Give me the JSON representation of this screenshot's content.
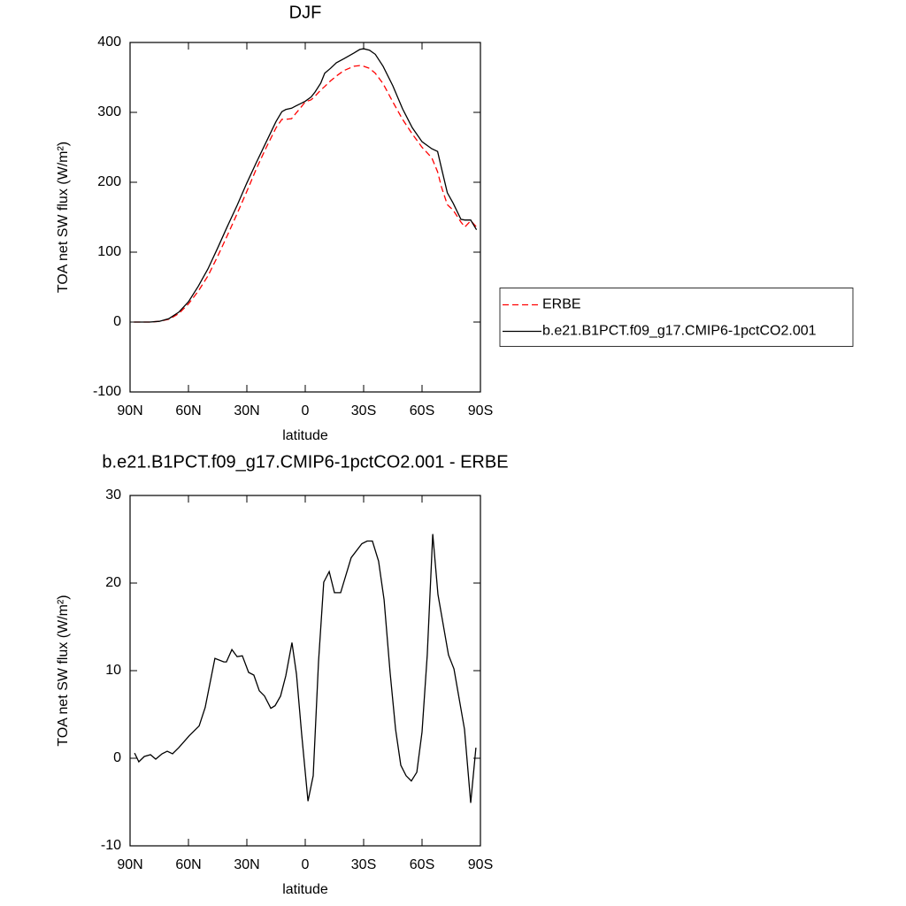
{
  "chart_data": [
    {
      "type": "line",
      "title": "DJF",
      "xlabel": "latitude",
      "ylabel": "TOA net SW flux (W/m²)",
      "x": [
        88,
        85,
        80,
        75,
        70,
        65,
        60,
        55,
        50,
        45,
        40,
        35,
        30,
        25,
        20,
        15,
        12,
        10,
        7,
        5,
        2,
        0,
        -3,
        -5,
        -8,
        -10,
        -13,
        -16,
        -20,
        -25,
        -28,
        -30,
        -33,
        -36,
        -40,
        -45,
        -50,
        -55,
        -60,
        -65,
        -68,
        -70,
        -73,
        -76,
        -80,
        -82,
        -85,
        -88
      ],
      "series": [
        {
          "name": "ERBE",
          "color": "#ff0000",
          "dashed": true,
          "values": [
            0,
            0,
            0,
            1,
            4,
            12,
            26,
            44,
            66,
            94,
            124,
            155,
            187,
            220,
            250,
            278,
            290,
            290,
            291,
            298,
            308,
            315,
            318,
            323,
            332,
            337,
            345,
            352,
            360,
            366,
            367,
            366,
            363,
            356,
            341,
            315,
            290,
            269,
            250,
            235,
            215,
            193,
            168,
            160,
            143,
            136,
            145,
            136
          ]
        },
        {
          "name": "b.e21.B1PCT.f09_g17.CMIP6-1pctCO2.001",
          "color": "#000000",
          "dashed": false,
          "values": [
            0,
            0,
            0,
            1,
            5,
            14,
            29,
            51,
            76,
            106,
            137,
            167,
            199,
            229,
            258,
            287,
            301,
            304,
            306,
            309,
            313,
            316,
            322,
            329,
            342,
            356,
            363,
            371,
            377,
            385,
            390,
            391,
            389,
            383,
            366,
            338,
            305,
            278,
            258,
            248,
            244,
            220,
            185,
            170,
            147,
            146,
            146,
            132
          ]
        }
      ],
      "xlim": [
        90,
        -90
      ],
      "xticks": [
        {
          "value": 90,
          "label": "90N"
        },
        {
          "value": 60,
          "label": "60N"
        },
        {
          "value": 30,
          "label": "30N"
        },
        0,
        {
          "value": -30,
          "label": "30S"
        },
        {
          "value": -60,
          "label": "60S"
        },
        {
          "value": -90,
          "label": "90S"
        }
      ],
      "ylim": [
        -100,
        400
      ],
      "yticks": [
        -100,
        0,
        100,
        200,
        300,
        400
      ],
      "legend": "right"
    },
    {
      "type": "line",
      "title": "b.e21.B1PCT.f09_g17.CMIP6-1pctCO2.001 - ERBE",
      "xlabel": "latitude",
      "ylabel": "TOA net SW flux (W/m²)",
      "x": [
        87.7,
        85.5,
        82.7,
        79.5,
        76.8,
        73.6,
        70.9,
        68.2,
        65,
        59.5,
        54.5,
        51.4,
        46.4,
        41.8,
        40.5,
        37.7,
        35,
        32.3,
        29.1,
        26.4,
        23.6,
        20.9,
        17.7,
        15.5,
        12.7,
        10,
        6.8,
        4.5,
        1.8,
        -1.4,
        -4.1,
        -6.8,
        -9.5,
        -12.3,
        -15,
        -18.2,
        -23.6,
        -29.1,
        -31.8,
        -34.5,
        -37.7,
        -40.5,
        -43.6,
        -46.4,
        -49.1,
        -51.8,
        -54.5,
        -57.3,
        -60,
        -62.7,
        -65.5,
        -68.2,
        -73.6,
        -76.4,
        -81.8,
        -85,
        -87.7
      ],
      "series": [
        {
          "color": "#000000",
          "dashed": false,
          "values": [
            0.6,
            -0.4,
            0.2,
            0.4,
            -0.1,
            0.5,
            0.8,
            0.5,
            1.2,
            2.6,
            3.7,
            5.8,
            11.4,
            11.0,
            11.0,
            12.4,
            11.6,
            11.7,
            9.8,
            9.5,
            7.7,
            7.1,
            5.7,
            6.0,
            7.1,
            9.4,
            13.2,
            9.6,
            2.7,
            -4.9,
            -2.0,
            11.0,
            20.1,
            21.3,
            18.9,
            18.9,
            22.9,
            24.5,
            24.8,
            24.8,
            22.5,
            18.1,
            9.8,
            3.3,
            -0.8,
            -2.0,
            -2.6,
            -1.6,
            3.0,
            11.8,
            25.6,
            18.7,
            11.8,
            10.2,
            3.3,
            -5.1,
            1.2
          ]
        }
      ],
      "xlim": [
        90,
        -90
      ],
      "xticks": [
        {
          "value": 90,
          "label": "90N"
        },
        {
          "value": 60,
          "label": "60N"
        },
        {
          "value": 30,
          "label": "30N"
        },
        0,
        {
          "value": -30,
          "label": "30S"
        },
        {
          "value": -60,
          "label": "60S"
        },
        {
          "value": -90,
          "label": "90S"
        }
      ],
      "ylim": [
        -10,
        30
      ],
      "yticks": [
        -10,
        0,
        10,
        20,
        30
      ]
    }
  ]
}
